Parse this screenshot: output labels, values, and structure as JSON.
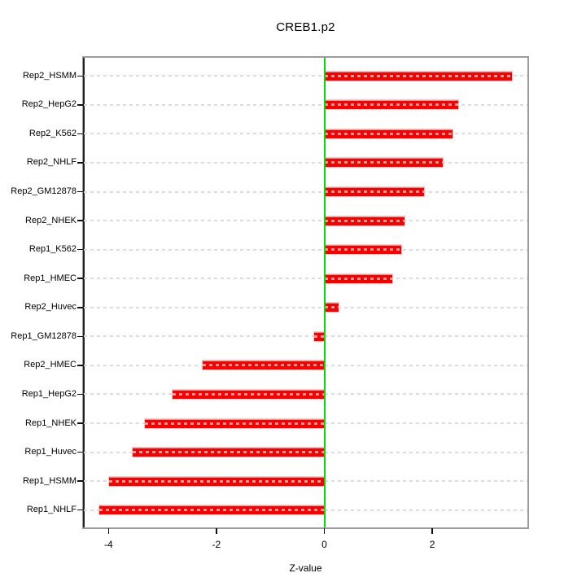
{
  "chart_data": {
    "type": "bar",
    "orientation": "horizontal",
    "title": "CREB1.p2",
    "xlabel": "Z-value",
    "ylabel": "",
    "categories": [
      "Rep2_HSMM",
      "Rep2_HepG2",
      "Rep2_K562",
      "Rep2_NHLF",
      "Rep2_GM12878",
      "Rep2_NHEK",
      "Rep1_K562",
      "Rep1_HMEC",
      "Rep2_Huvec",
      "Rep1_GM12878",
      "Rep2_HMEC",
      "Rep1_HepG2",
      "Rep1_NHEK",
      "Rep1_Huvec",
      "Rep1_HSMM",
      "Rep1_NHLF"
    ],
    "values": [
      3.47,
      2.48,
      2.37,
      2.19,
      1.85,
      1.49,
      1.42,
      1.26,
      0.27,
      -0.19,
      -2.25,
      -2.81,
      -3.32,
      -3.55,
      -3.99,
      -4.17
    ],
    "x_ticks": [
      -4,
      -2,
      0,
      2
    ],
    "xlim": [
      -4.45,
      3.78
    ],
    "grid": "dashed-row-guides",
    "legend": "none",
    "colors": {
      "bar": "#f70000",
      "bar_stipple": "#ff9e9e",
      "zero_line": "#00dd00",
      "row_guide": "#dcdcdc",
      "box_border": "#9c9c9c",
      "axis_tick": "#111111",
      "text": "#000000",
      "background": "#ffffff"
    }
  }
}
